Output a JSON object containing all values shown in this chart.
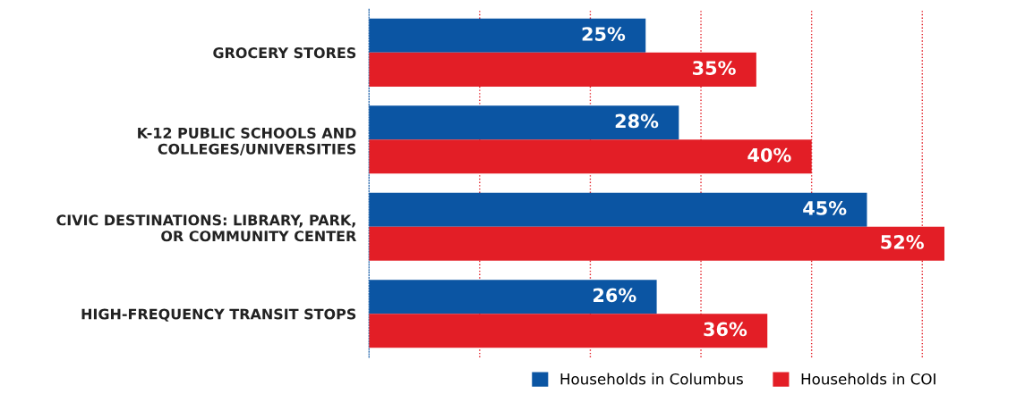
{
  "chart_data": {
    "type": "bar",
    "orientation": "horizontal",
    "categories": [
      "GROCERY STORES",
      "K-12 PUBLIC SCHOOLS AND\nCOLLEGES/UNIVERSITIES",
      "CIVIC DESTINATIONS: LIBRARY, PARK,\nOR COMMUNITY CENTER",
      "HIGH-FREQUENCY TRANSIT STOPS"
    ],
    "series": [
      {
        "name": "Households in Columbus",
        "color": "#0b55a3",
        "values": [
          25,
          28,
          45,
          26
        ],
        "value_labels": [
          "25%",
          "28%",
          "45%",
          "26%"
        ]
      },
      {
        "name": "Households in COI",
        "color": "#e31e26",
        "values": [
          35,
          40,
          52,
          36
        ],
        "value_labels": [
          "35%",
          "40%",
          "52%",
          "36%"
        ]
      }
    ],
    "tick_labels": "y",
    "ref_lines": [
      {
        "axis": "x",
        "value": 10,
        "color": "#e31e26",
        "line_style": "dotted"
      },
      {
        "axis": "x",
        "value": 20,
        "color": "#e31e26",
        "line_style": "dotted"
      },
      {
        "axis": "x",
        "value": 30,
        "color": "#e31e26",
        "line_style": "dotted"
      },
      {
        "axis": "x",
        "value": 40,
        "color": "#e31e26",
        "line_style": "dotted"
      },
      {
        "axis": "x",
        "value": 50,
        "color": "#e31e26",
        "line_style": "dotted"
      }
    ],
    "legend": "bottom right"
  }
}
